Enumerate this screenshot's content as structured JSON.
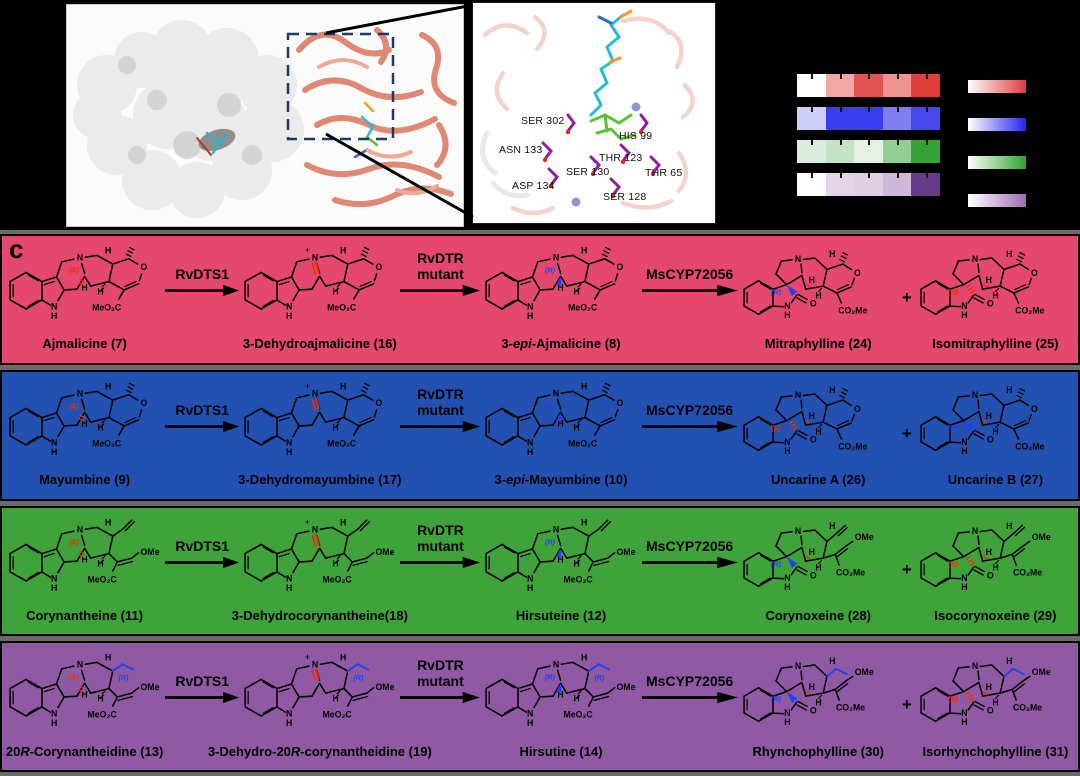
{
  "panel_c": {
    "label": "c",
    "plus": "+",
    "enzymes": [
      "RvDTS1",
      "RvDTR\nmutant",
      "MsCYP72056"
    ],
    "chem": {
      "n": "N",
      "h": "H",
      "o": "O",
      "plus_charge": "+",
      "meo2c": "MeO₂C",
      "co2me": "CO₂Me",
      "ome": "OMe"
    },
    "stereo_colors": {
      "red": "#f32a00",
      "blue": "#1f41ee"
    },
    "rows": [
      {
        "bg": "#e5486e",
        "variant": "pyran",
        "compounds": [
          {
            "name_html": "Ajmalicine (<b>7</b>)",
            "kind": "sub",
            "c3": {
              "label": "(S)",
              "color": "red"
            }
          },
          {
            "name_html": "3-Dehydroajmalicine (<b>16</b>)",
            "kind": "iminium"
          },
          {
            "name_html": "3-<i>epi</i>-Ajmalicine (<b>8</b>)",
            "kind": "sub",
            "c3": {
              "label": "(R)",
              "color": "blue"
            }
          },
          {
            "name_html": "Mitraphylline (<b>24</b>)",
            "kind": "spiro",
            "c7": {
              "label": "(R)",
              "color": "blue"
            }
          },
          {
            "name_html": "Isomitraphylline (<b>25</b>)",
            "kind": "spiro",
            "c7": {
              "label": "(S)",
              "color": "red"
            }
          }
        ]
      },
      {
        "bg": "#2351b2",
        "variant": "pyran",
        "compounds": [
          {
            "name_html": "Mayumbine (<b>9</b>)",
            "kind": "sub",
            "c3": {
              "label": "(S)",
              "color": "red"
            }
          },
          {
            "name_html": "3-Dehydromayumbine (<b>17</b>)",
            "kind": "iminium"
          },
          {
            "name_html": "3-<i>epi</i>-Mayumbine (<b>10</b>)",
            "kind": "sub",
            "c3": {
              "label": "(R)",
              "color": "blue"
            }
          },
          {
            "name_html": "Uncarine A (<b>26</b>)",
            "kind": "spiro",
            "c7": {
              "label": "(S)",
              "color": "red"
            }
          },
          {
            "name_html": "Uncarine B (<b>27</b>)",
            "kind": "spiro",
            "c7": {
              "label": "(R)",
              "color": "blue"
            }
          }
        ]
      },
      {
        "bg": "#3fa23b",
        "variant": "vinyl",
        "compounds": [
          {
            "name_html": "Corynantheine (<b>11</b>)",
            "kind": "sub",
            "c3": {
              "label": "(S)",
              "color": "red"
            }
          },
          {
            "name_html": "3-Dehydrocorynantheine(<b>18</b>)",
            "kind": "iminium"
          },
          {
            "name_html": "Hirsuteine (<b>12</b>)",
            "kind": "sub",
            "c3": {
              "label": "(R)",
              "color": "blue"
            }
          },
          {
            "name_html": "Corynoxeine (<b>28</b>)",
            "kind": "spiro",
            "c7": {
              "label": "(R)",
              "color": "blue"
            }
          },
          {
            "name_html": "Isocorynoxeine (<b>29</b>)",
            "kind": "spiro",
            "c7": {
              "label": "(S)",
              "color": "red"
            }
          }
        ]
      },
      {
        "bg": "#9059a4",
        "variant": "ethyl",
        "compounds": [
          {
            "name_html": "20<i>R</i>-Corynantheidine (<b>13</b>)",
            "kind": "sub",
            "c3": {
              "label": "(S)",
              "color": "red"
            },
            "c20": {
              "label": "(R)",
              "color": "blue"
            }
          },
          {
            "name_html": "3-Dehydro-20<i>R</i>-corynantheidine (<b>19</b>)",
            "kind": "iminium",
            "c20": {
              "label": "(R)",
              "color": "blue"
            }
          },
          {
            "name_html": "Hirsutine (<b>14</b>)",
            "kind": "sub",
            "c3": {
              "label": "(R)",
              "color": "blue"
            },
            "c20": {
              "label": "(R)",
              "color": "blue"
            }
          },
          {
            "name_html": "Rhynchophylline (<b>30</b>)",
            "kind": "spiro",
            "c7": {
              "label": "(R)",
              "color": "blue"
            }
          },
          {
            "name_html": "Isorhynchophylline (<b>31</b>)",
            "kind": "spiro",
            "c7": {
              "label": "(S)",
              "color": "red"
            }
          }
        ]
      }
    ]
  },
  "active_site": {
    "residues": [
      "SER 302",
      "HIS 99",
      "ASN 133",
      "THR 123",
      "SER 130",
      "THR 65",
      "ASP 134",
      "SER 128"
    ]
  },
  "legend": {
    "heatmap_rows": [
      {
        "name": "red",
        "cells": [
          "#ffffff",
          "#f2a6a6",
          "#e25454",
          "#ee9292",
          "#e23d3d"
        ]
      },
      {
        "name": "blue",
        "cells": [
          "#cdcdf9",
          "#3c3cf0",
          "#3c3cf0",
          "#7f7ff3",
          "#4747ea"
        ]
      },
      {
        "name": "green",
        "cells": [
          "#dcecdc",
          "#c4e3c4",
          "#e6f1e6",
          "#94cd94",
          "#37a037"
        ]
      },
      {
        "name": "purple",
        "cells": [
          "#ffffff",
          "#e4d4e9",
          "#dfd0e5",
          "#cfb7da",
          "#663b89"
        ]
      }
    ],
    "colorbars": [
      {
        "name": "red",
        "to": "#e03c3c"
      },
      {
        "name": "blue",
        "to": "#2525ec"
      },
      {
        "name": "green",
        "to": "#2fa32f"
      },
      {
        "name": "purple",
        "to": "#a06cb2"
      }
    ]
  },
  "structure_colors": {
    "surface_gray": "#ebebeb",
    "ribbon_salmon": "#e08874",
    "faint_ribbon": "#f3d3cd",
    "ligand_cyan": "#25bcd6",
    "ligand_green": "#5cc233",
    "residue_purple": "#8d1f9e",
    "phosphate_orange": "#f59a23",
    "sphere_slate": "#8f97cb",
    "box_navy": "#1f3864"
  }
}
